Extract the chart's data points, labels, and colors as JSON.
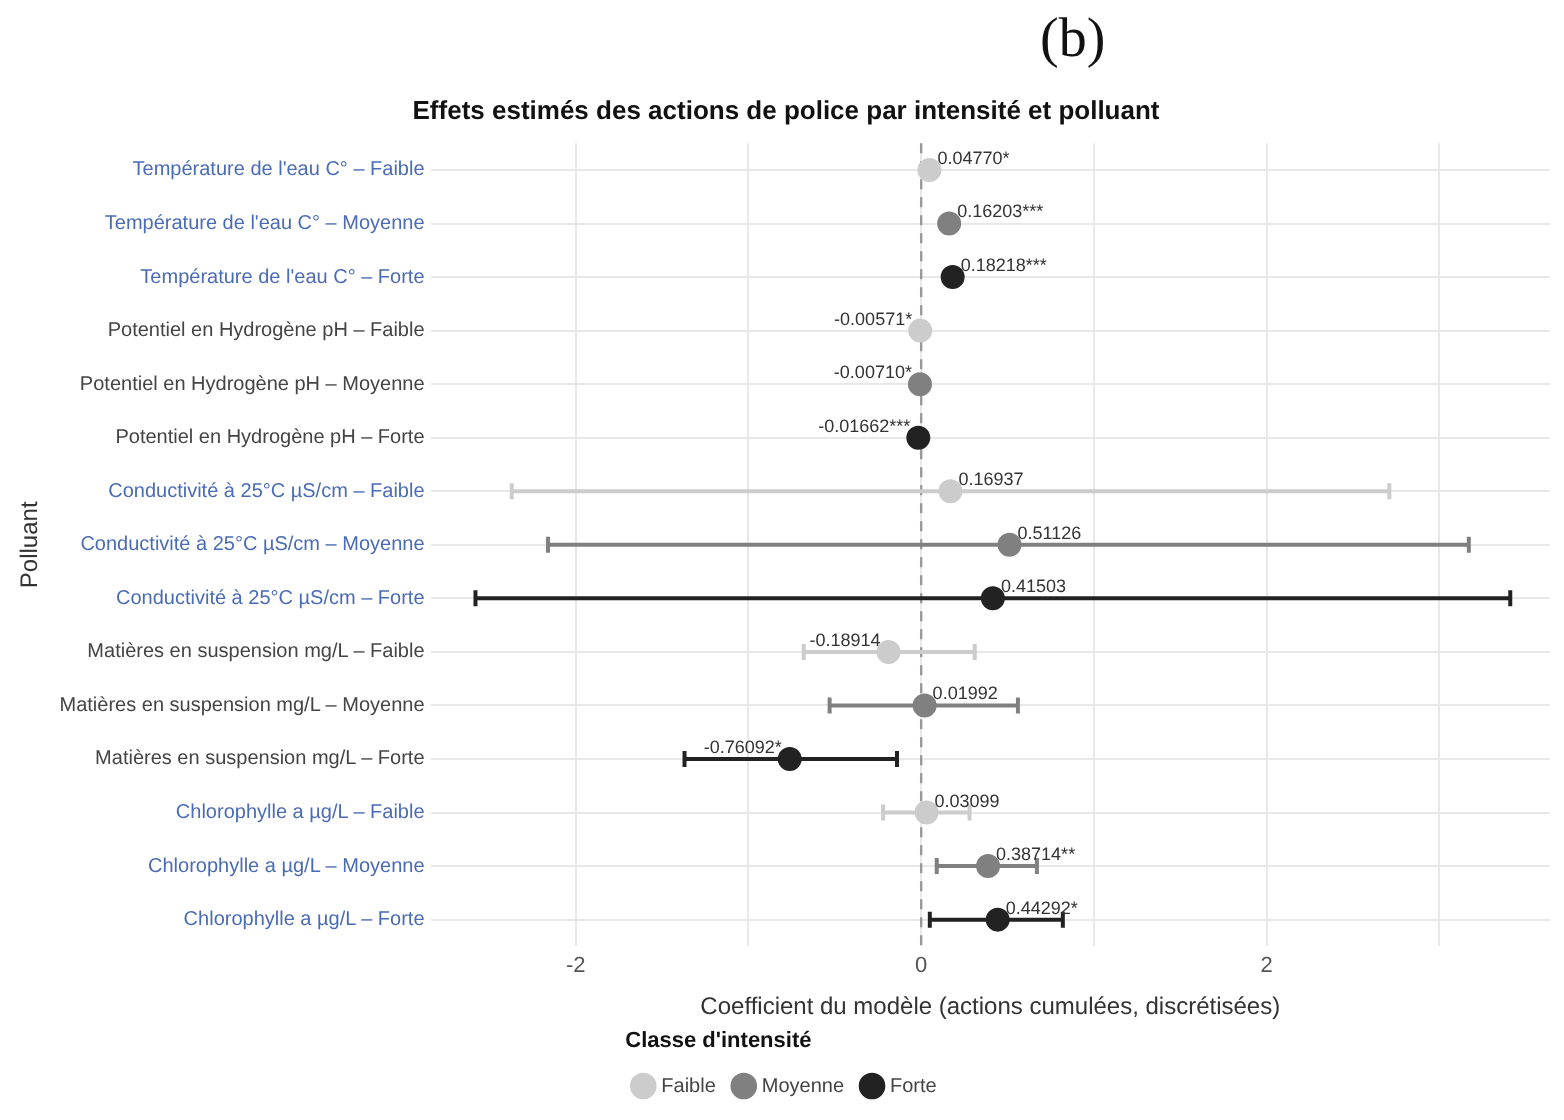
{
  "chart_data": {
    "type": "scatter",
    "orientation": "horizontal",
    "title": "Effets estimés des actions de police par intensité et polluant",
    "xlabel": "Coefficient du modèle (actions cumulées, discrétisées)",
    "ylabel": "Polluant",
    "legend_title": "Classe d'intensité",
    "legend": "bottom",
    "grid": true,
    "marker": "circle",
    "annotations": [
      "(b)"
    ],
    "categories": [
      "Température de l'eau C° – Faible",
      "Température de l'eau C° – Moyenne",
      "Température de l'eau C° – Forte",
      "Potentiel en Hydrogène pH – Faible",
      "Potentiel en Hydrogène pH – Moyenne",
      "Potentiel en Hydrogène pH – Forte",
      "Conductivité à 25°C µS/cm – Faible",
      "Conductivité à 25°C µS/cm – Moyenne",
      "Conductivité à 25°C µS/cm – Forte",
      "Matières en suspension mg/L – Faible",
      "Matières en suspension mg/L – Moyenne",
      "Matières en suspension mg/L – Forte",
      "Chlorophylle a µg/L – Faible",
      "Chlorophylle a µg/L – Moyenne",
      "Chlorophylle a µg/L – Forte"
    ],
    "xlim": [
      -2.84,
      3.64
    ],
    "xticks": [
      -2,
      {
        "value": -1,
        "label": null
      },
      0,
      {
        "value": 1,
        "label": null
      },
      2,
      {
        "value": 3,
        "label": null
      }
    ],
    "ref_lines": [
      {
        "axis": "x",
        "value": 0,
        "color": "#999999",
        "line_style": "dashed"
      }
    ],
    "series": [
      {
        "name": "Faible",
        "color": "#cccccc",
        "values": [
          0.0477,
          null,
          null,
          -0.00571,
          null,
          null,
          0.16937,
          null,
          null,
          -0.18914,
          null,
          null,
          0.03099,
          null,
          null
        ],
        "errors": [
          null,
          null,
          null,
          null,
          null,
          null,
          [
            -2.37,
            2.71
          ],
          null,
          null,
          [
            -0.68,
            0.31
          ],
          null,
          null,
          [
            -0.22,
            0.28
          ],
          null,
          null
        ],
        "value_labels": [
          "0.04770*",
          null,
          null,
          "-0.00571*",
          null,
          null,
          "0.16937",
          null,
          null,
          "-0.18914",
          null,
          null,
          "0.03099",
          null,
          null
        ]
      },
      {
        "name": "Moyenne",
        "color": "#808080",
        "values": [
          null,
          0.16203,
          null,
          null,
          -0.0071,
          null,
          null,
          0.51126,
          null,
          null,
          0.01992,
          null,
          null,
          0.38714,
          null
        ],
        "errors": [
          null,
          null,
          null,
          null,
          null,
          null,
          null,
          [
            -2.16,
            3.17
          ],
          null,
          null,
          [
            -0.53,
            0.56
          ],
          null,
          null,
          [
            0.09,
            0.67
          ],
          null
        ],
        "value_labels": [
          null,
          "0.16203***",
          null,
          null,
          "-0.00710*",
          null,
          null,
          "0.51126",
          null,
          null,
          "0.01992",
          null,
          null,
          "0.38714**",
          null
        ]
      },
      {
        "name": "Forte",
        "color": "#222222",
        "values": [
          null,
          null,
          0.18218,
          null,
          null,
          -0.01662,
          null,
          null,
          0.41503,
          null,
          null,
          -0.76092,
          null,
          null,
          0.44292
        ],
        "errors": [
          null,
          null,
          null,
          null,
          null,
          null,
          null,
          null,
          [
            -2.58,
            3.41
          ],
          null,
          null,
          [
            -1.37,
            -0.14
          ],
          null,
          null,
          [
            0.05,
            0.82
          ]
        ],
        "value_labels": [
          null,
          null,
          "0.18218***",
          null,
          null,
          "-0.01662***",
          null,
          null,
          "0.41503",
          null,
          null,
          "-0.76092*",
          null,
          null,
          "0.44292*"
        ]
      }
    ]
  }
}
